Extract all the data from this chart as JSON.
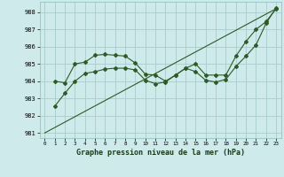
{
  "title": "Graphe pression niveau de la mer (hPa)",
  "bg_color": "#ceeaea",
  "grid_color": "#aacccc",
  "line_color": "#2d5a27",
  "xlim": [
    -0.5,
    23.5
  ],
  "ylim": [
    980.7,
    988.6
  ],
  "yticks": [
    981,
    982,
    983,
    984,
    985,
    986,
    987,
    988
  ],
  "xticks": [
    0,
    1,
    2,
    3,
    4,
    5,
    6,
    7,
    8,
    9,
    10,
    11,
    12,
    13,
    14,
    15,
    16,
    17,
    18,
    19,
    20,
    21,
    22,
    23
  ],
  "line1_x": [
    0,
    23
  ],
  "line1_y": [
    981.0,
    988.2
  ],
  "line2_x": [
    1,
    2,
    3,
    4,
    5,
    6,
    7,
    8,
    9,
    10,
    11,
    12,
    13,
    14,
    15,
    16,
    17,
    18,
    19,
    20,
    21,
    22,
    23
  ],
  "line2_y": [
    984.0,
    983.9,
    985.0,
    985.1,
    985.5,
    985.55,
    985.5,
    985.45,
    985.05,
    984.4,
    984.35,
    984.0,
    984.35,
    984.75,
    985.0,
    984.35,
    984.35,
    984.35,
    985.45,
    986.3,
    987.0,
    987.45,
    988.2
  ],
  "line3_x": [
    1,
    2,
    3,
    4,
    5,
    6,
    7,
    8,
    9,
    10,
    11,
    12,
    13,
    14,
    15,
    16,
    17,
    18,
    19,
    20,
    21,
    22,
    23
  ],
  "line3_y": [
    982.55,
    983.3,
    984.0,
    984.45,
    984.55,
    984.7,
    984.75,
    984.75,
    984.65,
    984.05,
    983.85,
    983.95,
    984.35,
    984.75,
    984.55,
    984.05,
    983.95,
    984.1,
    984.85,
    985.45,
    986.1,
    987.35,
    988.25
  ]
}
